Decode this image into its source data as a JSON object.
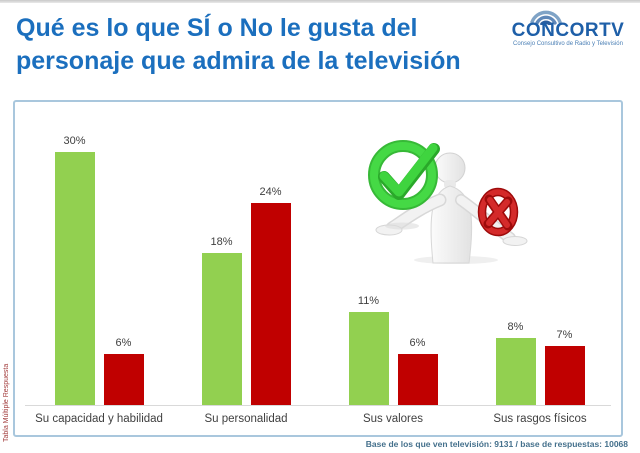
{
  "page": {
    "title": "Qué es lo que SÍ o No le gusta del personaje que admira de la televisión"
  },
  "logo": {
    "name": "CONCORTV",
    "subtitle": "Consejo Consultivo de Radio y Televisión"
  },
  "side_note": "Tabla Múltiple Respuesta",
  "footer": "Base de los que ven televisión: 9131  / base de respuestas: 10068",
  "colors": {
    "title_blue": "#1B6FBE",
    "panel_border": "#A9C7DD",
    "axis_gray": "#D9D9D9",
    "label_gray": "#404040",
    "footer_blue": "#44708C",
    "side_note_red": "#A33E3E",
    "si_green": "#92D050",
    "no_red": "#C00000"
  },
  "chart_data": {
    "type": "bar",
    "categories": [
      "Su capacidad y habilidad",
      "Su personalidad",
      "Sus valores",
      "Sus rasgos físicos"
    ],
    "series": [
      {
        "name": "Sí",
        "color": "#92D050",
        "values": [
          30,
          18,
          11,
          8
        ]
      },
      {
        "name": "No",
        "color": "#C00000",
        "values": [
          6,
          24,
          6,
          7
        ]
      }
    ],
    "value_suffix": "%",
    "ylim": [
      0,
      32
    ],
    "grid": false,
    "legend_position": "none",
    "data_labels_visible": true
  }
}
